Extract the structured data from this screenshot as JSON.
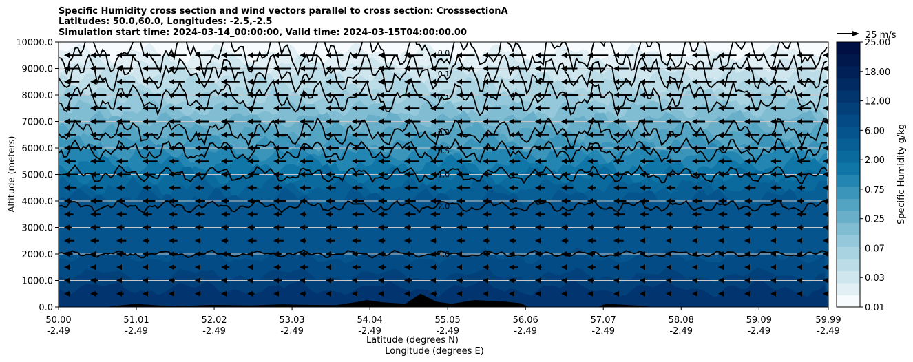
{
  "chart_data": {
    "type": "heatmap",
    "title_lines": [
      "Specific Humidity cross section and wind vectors parallel to cross section: CrosssectionA",
      "Latitudes: 50.0,60.0, Longitudes: -2.5,-2.5",
      "Simulation start time: 2024-03-14_00:00:00, Valid time: 2024-03-15T04:00:00.00"
    ],
    "ylabel": "Altitude (meters)",
    "xlabel_line1": "Latitude (degrees N)",
    "xlabel_line2": "Longitude (degrees E)",
    "ylim": [
      0,
      10000
    ],
    "xlim": [
      50.0,
      59.99
    ],
    "y_ticks": [
      {
        "value": 0,
        "label": "0.0"
      },
      {
        "value": 1000,
        "label": "1000.0"
      },
      {
        "value": 2000,
        "label": "2000.0"
      },
      {
        "value": 3000,
        "label": "3000.0"
      },
      {
        "value": 4000,
        "label": "4000.0"
      },
      {
        "value": 5000,
        "label": "5000.0"
      },
      {
        "value": 6000,
        "label": "6000.0"
      },
      {
        "value": 7000,
        "label": "7000.0"
      },
      {
        "value": 8000,
        "label": "8000.0"
      },
      {
        "value": 9000,
        "label": "9000.0"
      },
      {
        "value": 10000,
        "label": "10000.0"
      }
    ],
    "x_ticks": [
      {
        "lat": 50.0,
        "lat_label": "50.00",
        "lon_label": "-2.49"
      },
      {
        "lat": 51.01,
        "lat_label": "51.01",
        "lon_label": "-2.49"
      },
      {
        "lat": 52.02,
        "lat_label": "52.02",
        "lon_label": "-2.49"
      },
      {
        "lat": 53.03,
        "lat_label": "53.03",
        "lon_label": "-2.49"
      },
      {
        "lat": 54.04,
        "lat_label": "54.04",
        "lon_label": "-2.49"
      },
      {
        "lat": 55.05,
        "lat_label": "55.05",
        "lon_label": "-2.49"
      },
      {
        "lat": 56.06,
        "lat_label": "56.06",
        "lon_label": "-2.49"
      },
      {
        "lat": 57.07,
        "lat_label": "57.07",
        "lon_label": "-2.49"
      },
      {
        "lat": 58.08,
        "lat_label": "58.08",
        "lon_label": "-2.49"
      },
      {
        "lat": 59.09,
        "lat_label": "59.09",
        "lon_label": "-2.49"
      },
      {
        "lat": 59.99,
        "lat_label": "59.99",
        "lon_label": "-2.49"
      }
    ],
    "grid": "horizontal",
    "colorbar": {
      "label": "Specific Humidity g/kg",
      "levels": [
        "0.01",
        "0.03",
        "0.07",
        "0.25",
        "0.75",
        "2.00",
        "6.00",
        "12.00",
        "18.00",
        "25.00"
      ],
      "colors": [
        "#f7fbfd",
        "#e2f0f5",
        "#cfe6ee",
        "#bcdde8",
        "#a9d3e1",
        "#95c8da",
        "#80bcd2",
        "#69afca",
        "#53a3c3",
        "#3b95bb",
        "#2385b1",
        "#0f76a7",
        "#0a6a9e",
        "#075f96",
        "#05548d",
        "#044a84",
        "#033f79",
        "#02346d",
        "#012a62",
        "#012057",
        "#01184c",
        "#011044"
      ]
    },
    "contours": [
      {
        "label": "4.0",
        "altitude_m": 2000
      },
      {
        "label": "2.0",
        "altitude_m": 3800
      },
      {
        "label": "1.0",
        "altitude_m": 5000
      },
      {
        "label": "0.5",
        "altitude_m": 5900
      },
      {
        "label": "0.2",
        "altitude_m": 6600
      },
      {
        "label": "0.1",
        "altitude_m": 7900
      },
      {
        "label": "0.1",
        "altitude_m": 8800
      },
      {
        "label": "0.0",
        "altitude_m": 9600
      }
    ],
    "wind_vectors": {
      "reference_label": "25 m/s",
      "reference_speed_ms": 25,
      "direction": "southward",
      "description_rows_m": [
        500,
        1000,
        1500,
        2000,
        2500,
        3000,
        3500,
        4000,
        4500,
        5000,
        5500,
        6000,
        6500,
        7000,
        7500,
        8000,
        8500,
        9000,
        9500
      ],
      "speed_range_ms": [
        0,
        20
      ]
    },
    "terrain_color": "#000000"
  }
}
